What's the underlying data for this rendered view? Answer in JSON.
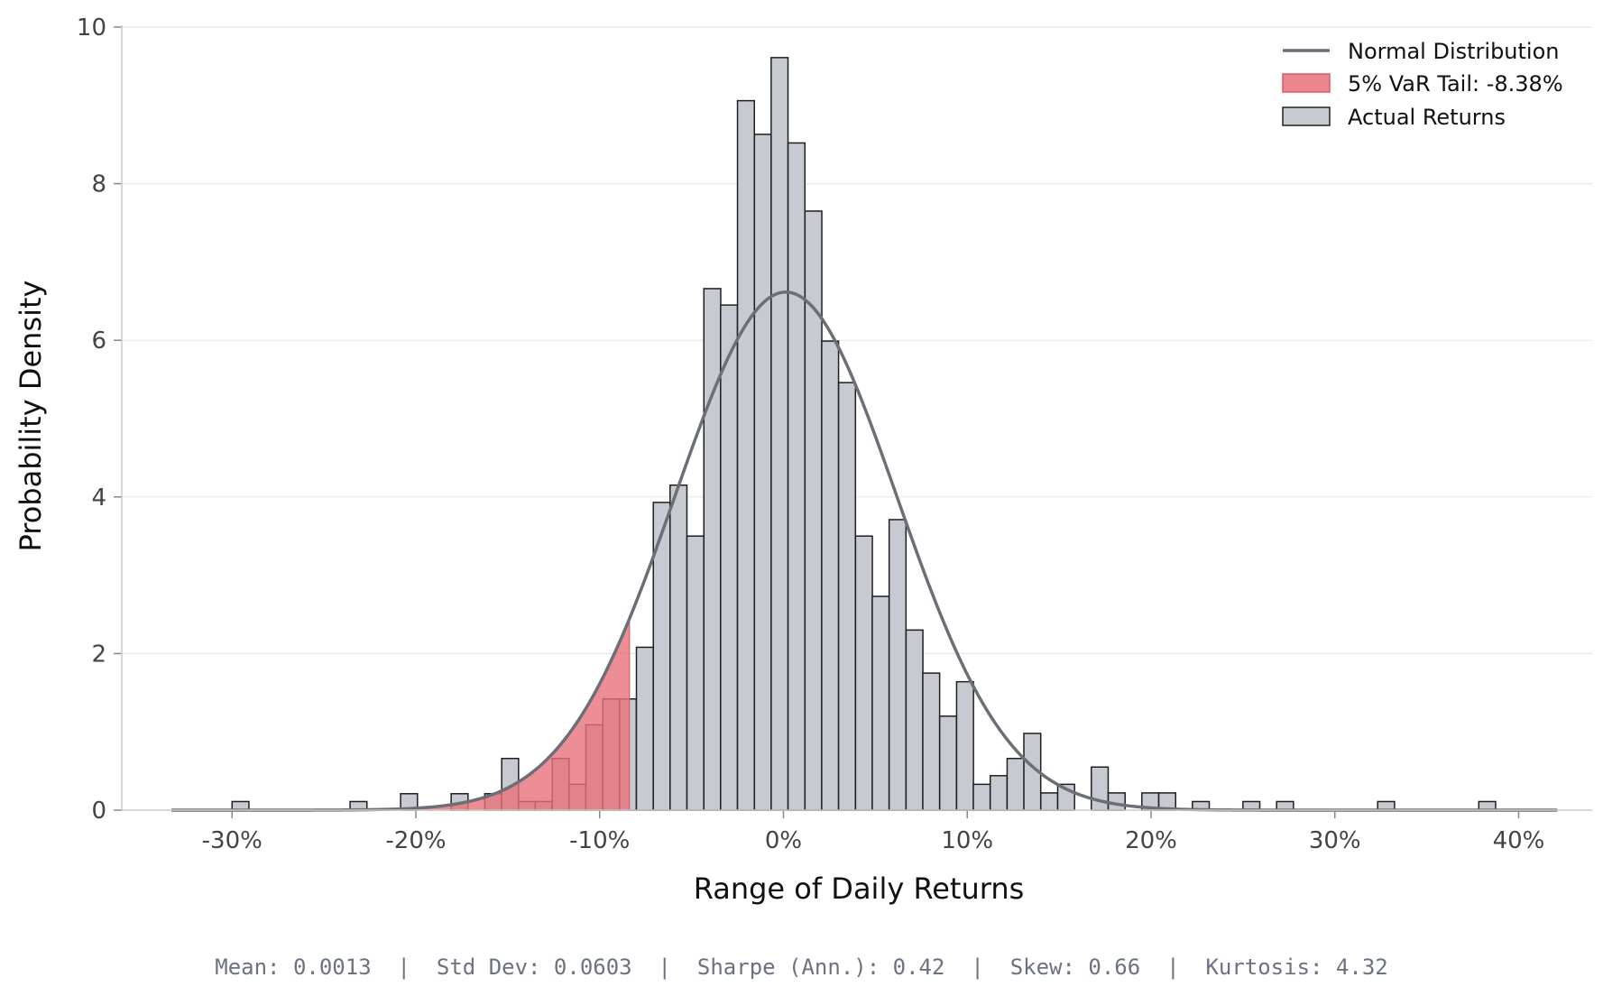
{
  "chart_data": {
    "type": "bar",
    "xlabel": "Range of Daily Returns",
    "ylabel": "Probability Density",
    "xlim": [
      -0.36,
      0.44
    ],
    "ylim": [
      0,
      10
    ],
    "x_ticks": [
      -0.3,
      -0.2,
      -0.1,
      0.0,
      0.1,
      0.2,
      0.3,
      0.4
    ],
    "x_tick_labels": [
      "-30%",
      "-20%",
      "-10%",
      "0%",
      "10%",
      "20%",
      "30%",
      "40%"
    ],
    "y_ticks": [
      0,
      2,
      4,
      6,
      8,
      10
    ],
    "y_tick_labels": [
      "0",
      "2",
      "4",
      "6",
      "8",
      "10"
    ],
    "grid": "horizontal",
    "legend_position": "top-right",
    "legend": [
      {
        "label": "Normal Distribution",
        "kind": "line",
        "color": "#6b6f76"
      },
      {
        "label": "5% VaR Tail: -8.38%",
        "kind": "patch",
        "color": "#e8707a"
      },
      {
        "label": "Actual Returns",
        "kind": "patch",
        "color": "#c7cbd1"
      }
    ],
    "histogram": {
      "bin_width": 0.00917,
      "bins": [
        {
          "x0": -0.3,
          "value": 0.11
        },
        {
          "x0": -0.2358,
          "value": 0.11
        },
        {
          "x0": -0.2083,
          "value": 0.21
        },
        {
          "x0": -0.1808,
          "value": 0.21
        },
        {
          "x0": -0.1625,
          "value": 0.21
        },
        {
          "x0": -0.1533,
          "value": 0.66
        },
        {
          "x0": -0.1442,
          "value": 0.11
        },
        {
          "x0": -0.135,
          "value": 0.11
        },
        {
          "x0": -0.1258,
          "value": 0.66
        },
        {
          "x0": -0.1167,
          "value": 0.33
        },
        {
          "x0": -0.1075,
          "value": 1.09
        },
        {
          "x0": -0.0983,
          "value": 1.42
        },
        {
          "x0": -0.0892,
          "value": 1.42
        },
        {
          "x0": -0.08,
          "value": 2.08
        },
        {
          "x0": -0.0708,
          "value": 3.93
        },
        {
          "x0": -0.0617,
          "value": 4.15
        },
        {
          "x0": -0.0525,
          "value": 3.5
        },
        {
          "x0": -0.0433,
          "value": 6.66
        },
        {
          "x0": -0.0342,
          "value": 6.45
        },
        {
          "x0": -0.025,
          "value": 9.06
        },
        {
          "x0": -0.0158,
          "value": 8.63
        },
        {
          "x0": -0.0067,
          "value": 9.61
        },
        {
          "x0": 0.0025,
          "value": 8.52
        },
        {
          "x0": 0.0117,
          "value": 7.65
        },
        {
          "x0": 0.0208,
          "value": 5.99
        },
        {
          "x0": 0.03,
          "value": 5.46
        },
        {
          "x0": 0.0392,
          "value": 3.5
        },
        {
          "x0": 0.0483,
          "value": 2.73
        },
        {
          "x0": 0.0575,
          "value": 3.71
        },
        {
          "x0": 0.0667,
          "value": 2.3
        },
        {
          "x0": 0.0758,
          "value": 1.75
        },
        {
          "x0": 0.085,
          "value": 1.2
        },
        {
          "x0": 0.0942,
          "value": 1.64
        },
        {
          "x0": 0.1033,
          "value": 0.33
        },
        {
          "x0": 0.1125,
          "value": 0.44
        },
        {
          "x0": 0.1217,
          "value": 0.66
        },
        {
          "x0": 0.1308,
          "value": 0.98
        },
        {
          "x0": 0.14,
          "value": 0.22
        },
        {
          "x0": 0.1492,
          "value": 0.33
        },
        {
          "x0": 0.1675,
          "value": 0.55
        },
        {
          "x0": 0.1767,
          "value": 0.22
        },
        {
          "x0": 0.195,
          "value": 0.22
        },
        {
          "x0": 0.2042,
          "value": 0.22
        },
        {
          "x0": 0.2225,
          "value": 0.11
        },
        {
          "x0": 0.25,
          "value": 0.11
        },
        {
          "x0": 0.2683,
          "value": 0.11
        },
        {
          "x0": 0.3233,
          "value": 0.11
        },
        {
          "x0": 0.3783,
          "value": 0.11
        }
      ]
    },
    "normal_curve": {
      "mean": 0.0013,
      "std": 0.0603,
      "x_range": [
        -0.333,
        0.421
      ],
      "color": "#6b6f76"
    },
    "var_tail": {
      "threshold": -0.0838,
      "label": "5% VaR Tail: -8.38%",
      "color": "#e8707a"
    },
    "stats_footer": {
      "mean": "Mean: 0.0013",
      "std_dev": "Std Dev: 0.0603",
      "sharpe": "Sharpe (Ann.): 0.42",
      "skew": "Skew: 0.66",
      "kurtosis": "Kurtosis: 4.32"
    }
  }
}
